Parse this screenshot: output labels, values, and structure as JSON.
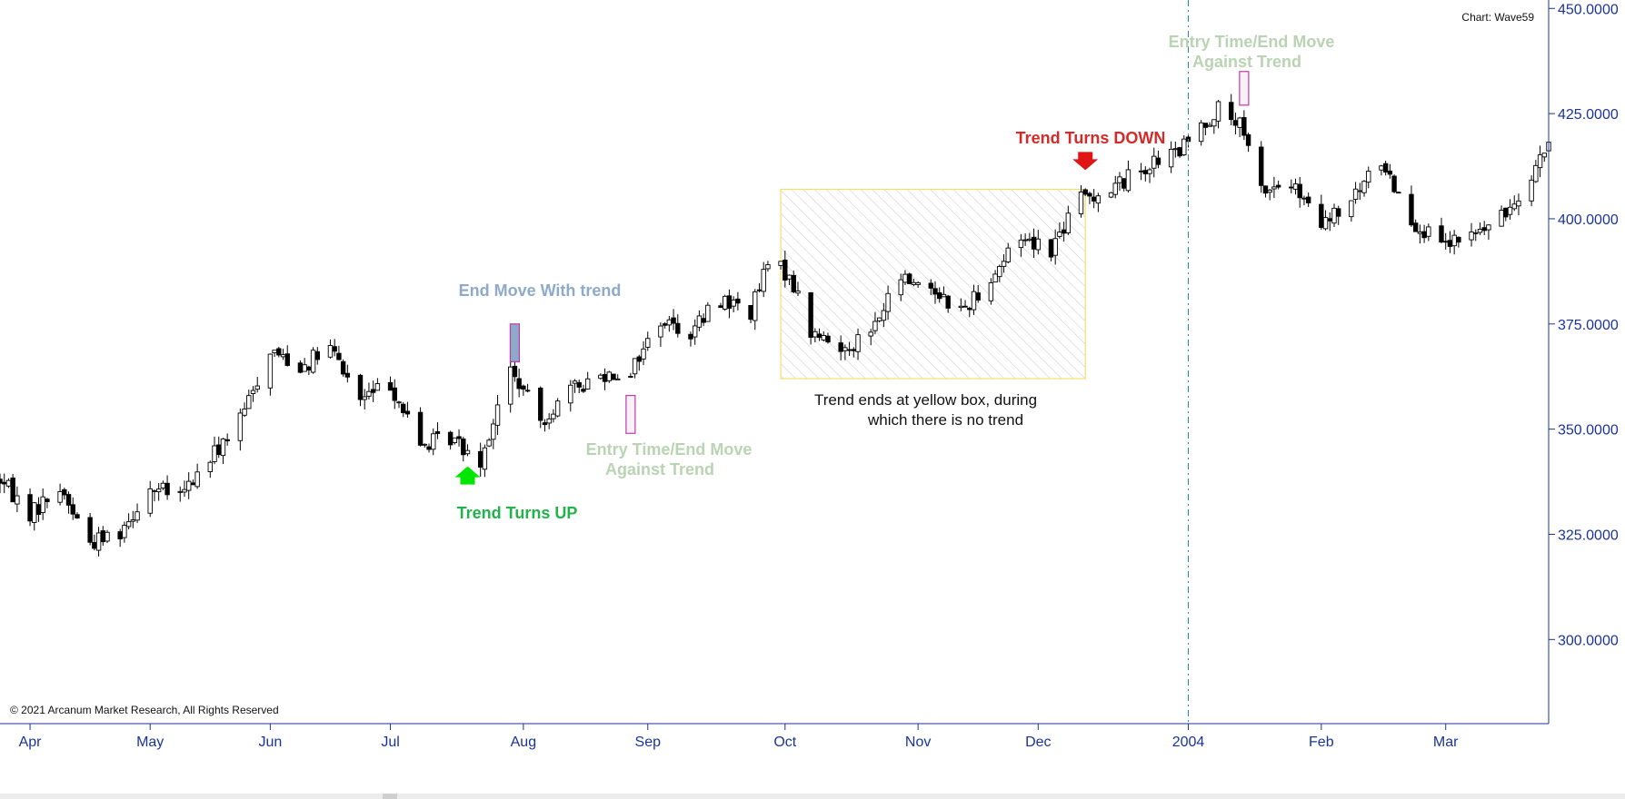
{
  "chart_label": "Chart: Wave59",
  "copyright": "© 2021 Arcanum Market Research, All Rights Reserved",
  "colors": {
    "axis": "#1a3399",
    "candle_up": "#ffffff",
    "candle_down": "#000000",
    "trend_up": "#22b24c",
    "trend_up_arrow": "#00e600",
    "trend_down": "#d42a2a",
    "end_move": "#8ea9c9",
    "entry_time": "#b9d3b3",
    "box_border": "#f3e06a",
    "divider": "#2b8a9a"
  },
  "annotations": {
    "end_move_with_trend": "End Move With trend",
    "entry_time_1_line1": "Entry Time/End Move",
    "entry_time_1_line2": "Against Trend",
    "entry_time_2_line1": "Entry Time/End Move",
    "entry_time_2_line2": "Against Trend",
    "trend_turns_up": "Trend Turns UP",
    "trend_turns_down": "Trend Turns DOWN",
    "box_note_line1": "Trend ends at yellow box, during",
    "box_note_line2": "which there is no trend"
  },
  "chart_data": {
    "type": "candlestick",
    "ylim": [
      280,
      452
    ],
    "y_ticks": [
      "450.0000",
      "425.0000",
      "400.0000",
      "375.0000",
      "350.0000",
      "325.0000",
      "300.0000"
    ],
    "x_ticks": [
      "Apr",
      "May",
      "Jun",
      "Jul",
      "Aug",
      "Sep",
      "Oct",
      "Nov",
      "Dec",
      "2004",
      "Feb",
      "Mar"
    ],
    "x_range": [
      "2003-03-31",
      "2004-03-26"
    ],
    "tick_dates": [
      "2003-04-07",
      "2003-05-05",
      "2003-06-02",
      "2003-06-30",
      "2003-07-31",
      "2003-08-29",
      "2003-09-30",
      "2003-10-31",
      "2003-11-28",
      "2004-01-02",
      "2004-02-02",
      "2004-03-02"
    ],
    "x_tick_values": [
      336,
      340,
      334,
      349,
      367,
      383,
      390,
      385,
      405,
      430,
      408,
      396
    ],
    "year_divider_date": "2004-01-02",
    "path": [
      [
        "2003-03-31",
        338
      ],
      [
        "2003-04-07",
        330
      ],
      [
        "2003-04-14",
        336
      ],
      [
        "2003-04-21",
        323
      ],
      [
        "2003-04-28",
        326
      ],
      [
        "2003-05-05",
        336
      ],
      [
        "2003-05-12",
        334
      ],
      [
        "2003-05-19",
        343
      ],
      [
        "2003-05-26",
        352
      ],
      [
        "2003-06-02",
        369
      ],
      [
        "2003-06-09",
        365
      ],
      [
        "2003-06-16",
        369
      ],
      [
        "2003-06-23",
        357
      ],
      [
        "2003-06-30",
        361
      ],
      [
        "2003-07-07",
        346
      ],
      [
        "2003-07-14",
        348
      ],
      [
        "2003-07-21",
        343
      ],
      [
        "2003-07-24",
        352
      ],
      [
        "2003-07-28",
        364
      ],
      [
        "2003-08-04",
        352
      ],
      [
        "2003-08-11",
        359
      ],
      [
        "2003-08-18",
        363
      ],
      [
        "2003-08-25",
        364
      ],
      [
        "2003-09-01",
        376
      ],
      [
        "2003-09-08",
        373
      ],
      [
        "2003-09-15",
        381
      ],
      [
        "2003-09-22",
        378
      ],
      [
        "2003-09-26",
        389
      ],
      [
        "2003-10-01",
        387
      ],
      [
        "2003-10-06",
        373
      ],
      [
        "2003-10-13",
        369
      ],
      [
        "2003-10-20",
        373
      ],
      [
        "2003-10-27",
        386
      ],
      [
        "2003-11-03",
        384
      ],
      [
        "2003-11-10",
        378
      ],
      [
        "2003-11-17",
        386
      ],
      [
        "2003-11-24",
        396
      ],
      [
        "2003-12-01",
        393
      ],
      [
        "2003-12-08",
        405
      ],
      [
        "2003-12-15",
        407
      ],
      [
        "2003-12-22",
        412
      ],
      [
        "2003-12-31",
        416
      ],
      [
        "2004-01-05",
        422
      ],
      [
        "2004-01-09",
        426
      ],
      [
        "2004-01-14",
        422
      ],
      [
        "2004-01-19",
        407
      ],
      [
        "2004-01-26",
        408
      ],
      [
        "2004-02-02",
        398
      ],
      [
        "2004-02-09",
        404
      ],
      [
        "2004-02-16",
        414
      ],
      [
        "2004-02-23",
        400
      ],
      [
        "2004-03-01",
        393
      ],
      [
        "2004-03-08",
        396
      ],
      [
        "2004-03-15",
        400
      ],
      [
        "2004-03-22",
        411
      ],
      [
        "2004-03-26",
        418
      ]
    ],
    "markers": {
      "end_move_with_trend": {
        "date": "2003-07-29",
        "from": 366,
        "to": 375
      },
      "entry_time_1": {
        "date": "2003-08-25",
        "from": 349,
        "to": 358
      },
      "entry_time_2": {
        "date": "2004-01-15",
        "from": 427,
        "to": 435
      },
      "trend_up_arrow": {
        "date": "2003-07-18",
        "value": 339
      },
      "trend_down_arrow": {
        "date": "2003-12-09",
        "value": 412
      },
      "no_trend_box": {
        "from_date": "2003-09-29",
        "to_date": "2003-12-09",
        "from_value": 362,
        "to_value": 407
      }
    }
  }
}
